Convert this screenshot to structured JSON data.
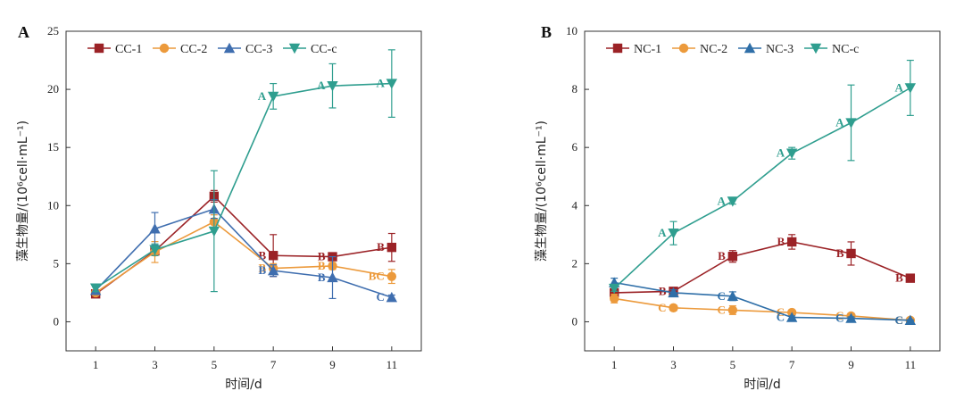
{
  "chart_data": [
    {
      "type": "line",
      "panel": "A",
      "xlabel": "时间/d",
      "ylabel": "藻生物量/(10⁶cell·mL⁻¹)",
      "x": [
        1,
        3,
        5,
        7,
        9,
        11
      ],
      "xlim": [
        0,
        12
      ],
      "ylim": [
        -2.5,
        25
      ],
      "xticks": [
        1,
        3,
        5,
        7,
        9,
        11
      ],
      "yticks": [
        0,
        5,
        10,
        15,
        20,
        25
      ],
      "legend_position": "top-left",
      "series": [
        {
          "name": "CC-1",
          "color": "#9b2226",
          "marker": "square",
          "values": [
            2.4,
            6.1,
            10.8,
            5.7,
            5.6,
            6.4
          ],
          "errors": [
            0.3,
            0.4,
            0.5,
            1.8,
            0.3,
            1.2
          ],
          "labels": [
            "",
            "",
            "",
            "B",
            "B",
            "B"
          ]
        },
        {
          "name": "CC-2",
          "color": "#ec9a3c",
          "marker": "circle",
          "values": [
            2.5,
            6.0,
            8.6,
            4.6,
            4.8,
            3.9
          ],
          "errors": [
            0.2,
            0.9,
            0.6,
            0.4,
            0.3,
            0.6
          ],
          "labels": [
            "",
            "",
            "",
            "B",
            "B",
            "BC"
          ]
        },
        {
          "name": "CC-3",
          "color": "#3f6eaf",
          "marker": "triangle-up",
          "values": [
            2.7,
            8.0,
            9.7,
            4.4,
            3.8,
            2.1
          ],
          "errors": [
            0.3,
            1.4,
            0.8,
            0.5,
            1.8,
            0.2
          ],
          "labels": [
            "",
            "",
            "",
            "B",
            "B",
            "C"
          ]
        },
        {
          "name": "CC-c",
          "color": "#2f9e8f",
          "marker": "triangle-down",
          "values": [
            2.9,
            6.2,
            7.8,
            19.4,
            20.3,
            20.5
          ],
          "errors": [
            0.3,
            0.5,
            5.2,
            1.1,
            1.9,
            2.9
          ],
          "labels": [
            "",
            "",
            "",
            "A",
            "A",
            "A"
          ]
        }
      ]
    },
    {
      "type": "line",
      "panel": "B",
      "xlabel": "时间/d",
      "ylabel": "藻生物量/(10⁶cell·mL⁻¹)",
      "x": [
        1,
        3,
        5,
        7,
        9,
        11
      ],
      "xlim": [
        0,
        12
      ],
      "ylim": [
        -1,
        10
      ],
      "xticks": [
        1,
        3,
        5,
        7,
        9,
        11
      ],
      "yticks": [
        0,
        2,
        4,
        6,
        8,
        10
      ],
      "legend_position": "top-left",
      "series": [
        {
          "name": "NC-1",
          "color": "#9b2226",
          "marker": "square",
          "values": [
            1.0,
            1.05,
            2.25,
            2.75,
            2.35,
            1.5
          ],
          "errors": [
            0.1,
            0.1,
            0.2,
            0.25,
            0.4,
            0.05
          ],
          "labels": [
            "",
            "B",
            "B",
            "B",
            "B",
            "B"
          ]
        },
        {
          "name": "NC-2",
          "color": "#ec9a3c",
          "marker": "circle",
          "values": [
            0.8,
            0.48,
            0.4,
            0.32,
            0.2,
            0.05
          ],
          "errors": [
            0.15,
            0.1,
            0.15,
            0.05,
            0.05,
            0.02
          ],
          "labels": [
            "",
            "C",
            "C",
            "C",
            "C",
            "C"
          ]
        },
        {
          "name": "NC-3",
          "color": "#2f6fa8",
          "marker": "triangle-up",
          "values": [
            1.35,
            1.0,
            0.88,
            0.15,
            0.12,
            0.05
          ],
          "errors": [
            0.15,
            0.1,
            0.15,
            0.05,
            0.05,
            0.02
          ],
          "labels": [
            "",
            "",
            "C",
            "C",
            "C",
            "C"
          ]
        },
        {
          "name": "NC-c",
          "color": "#2f9e8f",
          "marker": "triangle-down",
          "values": [
            1.15,
            3.05,
            4.15,
            5.8,
            6.85,
            8.05
          ],
          "errors": [
            0.1,
            0.4,
            0.1,
            0.2,
            1.3,
            0.95
          ],
          "labels": [
            "",
            "A",
            "A",
            "A",
            "A",
            "A"
          ]
        }
      ]
    }
  ]
}
